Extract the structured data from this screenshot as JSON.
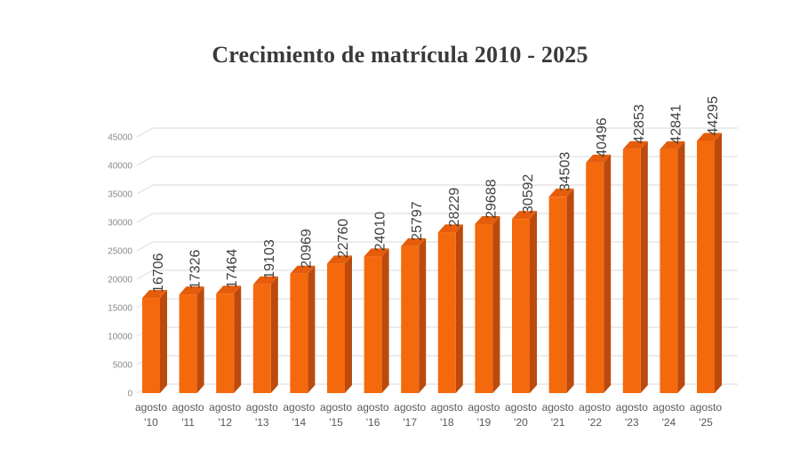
{
  "window": {
    "background": "#FFFFFF"
  },
  "chart_data": {
    "type": "bar",
    "style": "3d-column",
    "title": "Crecimiento de matrícula 2010 - 2025",
    "categories": [
      "agosto '10",
      "agosto '11",
      "agosto '12",
      "agosto '13",
      "agosto '14",
      "agosto '15",
      "agosto '16",
      "agosto '17",
      "agosto '18",
      "agosto '19",
      "agosto '20",
      "agosto '21",
      "agosto '22",
      "agosto '23",
      "agosto '24",
      "agosto '25"
    ],
    "values": [
      16706,
      17326,
      17464,
      19103,
      20969,
      22760,
      24010,
      25797,
      28229,
      29688,
      30592,
      34503,
      40496,
      42853,
      42841,
      44295
    ],
    "xlabel": "",
    "ylabel": "",
    "ylim": [
      0,
      45000
    ],
    "y_ticks": [
      0,
      5000,
      10000,
      15000,
      20000,
      25000,
      30000,
      35000,
      40000,
      45000
    ],
    "grid": true,
    "legend": "none",
    "data_labels": "rotated-90-above-bars",
    "colors": {
      "bar_front": "#F5690D",
      "bar_side": "#BC4A0D",
      "bar_top": "#E55D0B",
      "gridline": "#D9D9D9",
      "value_label": "#3F3F3F",
      "tick_label": "#8A8A8A",
      "category_label": "#595959",
      "title": "#3A3A3A",
      "background": "#FFFFFF"
    }
  }
}
